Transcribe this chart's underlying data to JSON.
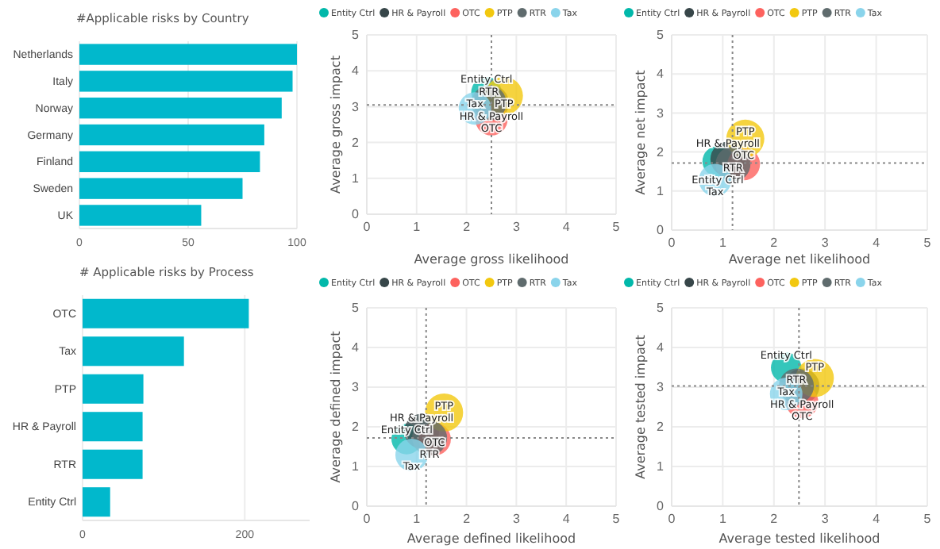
{
  "chart_data": [
    {
      "type": "bar",
      "orientation": "horizontal",
      "title": "#Applicable risks by Country",
      "categories": [
        "Netherlands",
        "Italy",
        "Norway",
        "Germany",
        "Finland",
        "Sweden",
        "UK"
      ],
      "values": [
        100,
        98,
        93,
        85,
        83,
        75,
        56
      ],
      "color": "#01b8cc",
      "xlim": [
        0,
        100
      ],
      "xticks": [
        0,
        50,
        100
      ],
      "grid": "x"
    },
    {
      "type": "bubble",
      "xlabel": "Average gross likelihood",
      "ylabel": "Average gross impact",
      "xlim": [
        0,
        5
      ],
      "ylim": [
        0,
        5
      ],
      "xticks": [
        0,
        1,
        2,
        3,
        4,
        5
      ],
      "yticks": [
        0,
        1,
        2,
        3,
        4,
        5
      ],
      "grid": true,
      "legend": "top",
      "series": [
        {
          "name": "Entity Ctrl",
          "color": "#01b8aa",
          "x": [
            2.4
          ],
          "values": [
            3.4
          ],
          "sizes": [
            0.64
          ]
        },
        {
          "name": "HR & Payroll",
          "color": "#374649",
          "x": [
            2.5
          ],
          "values": [
            3.1
          ],
          "sizes": [
            0.84
          ]
        },
        {
          "name": "OTC",
          "color": "#fd625e",
          "x": [
            2.5
          ],
          "values": [
            2.65
          ],
          "sizes": [
            0.73
          ]
        },
        {
          "name": "PTP",
          "color": "#f2c80f",
          "x": [
            2.75
          ],
          "values": [
            3.3
          ],
          "sizes": [
            1
          ]
        },
        {
          "name": "RTR",
          "color": "#5f6b6d",
          "x": [
            2.45
          ],
          "values": [
            3.1
          ],
          "sizes": [
            0.84
          ]
        },
        {
          "name": "Tax",
          "color": "#8ad4eb",
          "x": [
            2.17
          ],
          "values": [
            2.95
          ],
          "sizes": [
            0.73
          ]
        }
      ],
      "ref_lines": [
        {
          "axis": "x",
          "value": 2.5,
          "line_style": "dotted"
        },
        {
          "axis": "y",
          "value": 3.05,
          "line_style": "dotted"
        }
      ],
      "data_labels": "name"
    },
    {
      "type": "bubble",
      "xlabel": "Average net likelihood",
      "ylabel": "Average net impact",
      "xlim": [
        0,
        5
      ],
      "ylim": [
        0,
        5
      ],
      "xticks": [
        0,
        1,
        2,
        3,
        4,
        5
      ],
      "yticks": [
        0,
        1,
        2,
        3,
        4,
        5
      ],
      "grid": true,
      "legend": "top",
      "series": [
        {
          "name": "Entity Ctrl",
          "color": "#01b8aa",
          "x": [
            0.9
          ],
          "values": [
            1.76
          ],
          "sizes": [
            0.64
          ]
        },
        {
          "name": "HR & Payroll",
          "color": "#374649",
          "x": [
            1.1
          ],
          "values": [
            1.82
          ],
          "sizes": [
            0.84
          ]
        },
        {
          "name": "OTC",
          "color": "#fd625e",
          "x": [
            1.41
          ],
          "values": [
            1.69
          ],
          "sizes": [
            0.73
          ]
        },
        {
          "name": "PTP",
          "color": "#f2c80f",
          "x": [
            1.44
          ],
          "values": [
            2.34
          ],
          "sizes": [
            1
          ]
        },
        {
          "name": "RTR",
          "color": "#5f6b6d",
          "x": [
            1.2
          ],
          "values": [
            1.69
          ],
          "sizes": [
            0.84
          ]
        },
        {
          "name": "Tax",
          "color": "#8ad4eb",
          "x": [
            0.85
          ],
          "values": [
            1.28
          ],
          "sizes": [
            0.73
          ]
        }
      ],
      "ref_lines": [
        {
          "axis": "x",
          "value": 1.19,
          "line_style": "dotted"
        },
        {
          "axis": "y",
          "value": 1.72,
          "line_style": "dotted"
        }
      ],
      "data_labels": "name"
    },
    {
      "type": "bar",
      "orientation": "horizontal",
      "title": "# Applicable risks by Process",
      "categories": [
        "OTC",
        "Tax",
        "PTP",
        "HR & Payroll",
        "RTR",
        "Entity Ctrl"
      ],
      "values": [
        205,
        125,
        75,
        74,
        74,
        34
      ],
      "color": "#01b8cc",
      "xlim": [
        0,
        280
      ],
      "xticks": [
        0,
        200
      ],
      "grid": "x"
    },
    {
      "type": "bubble",
      "xlabel": "Average defined likelihood",
      "ylabel": "Average defined impact",
      "xlim": [
        0,
        5
      ],
      "ylim": [
        0,
        5
      ],
      "xticks": [
        0,
        1,
        2,
        3,
        4,
        5
      ],
      "yticks": [
        0,
        1,
        2,
        3,
        4,
        5
      ],
      "grid": true,
      "legend": "top",
      "series": [
        {
          "name": "Entity Ctrl",
          "color": "#01b8aa",
          "x": [
            0.8
          ],
          "values": [
            1.69
          ],
          "sizes": [
            0.64
          ]
        },
        {
          "name": "HR & Payroll",
          "color": "#374649",
          "x": [
            1.1
          ],
          "values": [
            1.89
          ],
          "sizes": [
            0.84
          ]
        },
        {
          "name": "OTC",
          "color": "#fd625e",
          "x": [
            1.36
          ],
          "values": [
            1.69
          ],
          "sizes": [
            0.73
          ]
        },
        {
          "name": "PTP",
          "color": "#f2c80f",
          "x": [
            1.55
          ],
          "values": [
            2.36
          ],
          "sizes": [
            1
          ]
        },
        {
          "name": "RTR",
          "color": "#5f6b6d",
          "x": [
            1.26
          ],
          "values": [
            1.72
          ],
          "sizes": [
            0.84
          ]
        },
        {
          "name": "Tax",
          "color": "#8ad4eb",
          "x": [
            0.9
          ],
          "values": [
            1.29
          ],
          "sizes": [
            0.73
          ]
        }
      ],
      "ref_lines": [
        {
          "axis": "x",
          "value": 1.19,
          "line_style": "dotted"
        },
        {
          "axis": "y",
          "value": 1.72,
          "line_style": "dotted"
        }
      ],
      "data_labels": "name"
    },
    {
      "type": "bubble",
      "xlabel": "Average tested likelihood",
      "ylabel": "Average tested impact",
      "xlim": [
        0,
        5
      ],
      "ylim": [
        0,
        5
      ],
      "xticks": [
        0,
        1,
        2,
        3,
        4,
        5
      ],
      "yticks": [
        0,
        1,
        2,
        3,
        4,
        5
      ],
      "grid": true,
      "legend": "top",
      "series": [
        {
          "name": "Entity Ctrl",
          "color": "#01b8aa",
          "x": [
            2.24
          ],
          "values": [
            3.49
          ],
          "sizes": [
            0.64
          ]
        },
        {
          "name": "HR & Payroll",
          "color": "#374649",
          "x": [
            2.55
          ],
          "values": [
            3.03
          ],
          "sizes": [
            0.84
          ]
        },
        {
          "name": "OTC",
          "color": "#fd625e",
          "x": [
            2.55
          ],
          "values": [
            2.63
          ],
          "sizes": [
            0.73
          ]
        },
        {
          "name": "PTP",
          "color": "#f2c80f",
          "x": [
            2.8
          ],
          "values": [
            3.23
          ],
          "sizes": [
            1
          ]
        },
        {
          "name": "RTR",
          "color": "#5f6b6d",
          "x": [
            2.44
          ],
          "values": [
            3.03
          ],
          "sizes": [
            0.84
          ]
        },
        {
          "name": "Tax",
          "color": "#8ad4eb",
          "x": [
            2.24
          ],
          "values": [
            2.83
          ],
          "sizes": [
            0.73
          ]
        }
      ],
      "ref_lines": [
        {
          "axis": "x",
          "value": 2.49,
          "line_style": "dotted"
        },
        {
          "axis": "y",
          "value": 3.03,
          "line_style": "dotted"
        }
      ],
      "data_labels": "name"
    }
  ]
}
